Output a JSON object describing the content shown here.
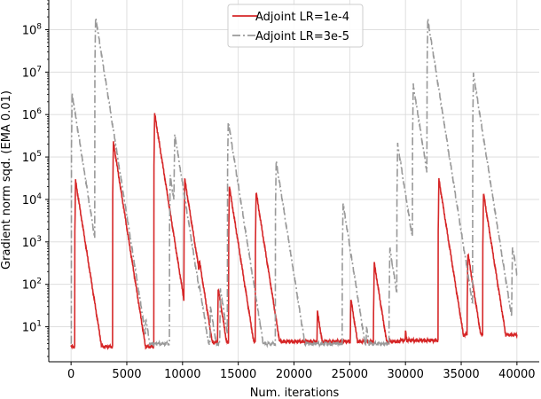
{
  "chart_data": {
    "type": "line",
    "xlabel": "Num. iterations",
    "ylabel": "Gradient norm sqd. (EMA 0.01)",
    "y_scale": "log",
    "xlim": [
      -2000,
      42000
    ],
    "ylim": [
      1.5,
      500000000
    ],
    "x_ticks": [
      0,
      5000,
      10000,
      15000,
      20000,
      25000,
      30000,
      35000,
      40000
    ],
    "x_tick_labels": [
      "0",
      "5000",
      "10000",
      "15000",
      "20000",
      "25000",
      "30000",
      "35000",
      "40000"
    ],
    "y_ticks": [
      10,
      100,
      1000,
      10000,
      100000,
      1000000,
      10000000,
      100000000
    ],
    "y_tick_labels": [
      {
        "base": "10",
        "exp": "1"
      },
      {
        "base": "10",
        "exp": "2"
      },
      {
        "base": "10",
        "exp": "3"
      },
      {
        "base": "10",
        "exp": "4"
      },
      {
        "base": "10",
        "exp": "5"
      },
      {
        "base": "10",
        "exp": "6"
      },
      {
        "base": "10",
        "exp": "7"
      },
      {
        "base": "10",
        "exp": "8"
      }
    ],
    "grid": true,
    "legend_position": "top-center",
    "series": [
      {
        "name": "Adjoint LR=1e-4",
        "color": "#d62728",
        "dash": "solid",
        "baseline_segments": [
          {
            "from": 0,
            "to": 7500,
            "value": 3.4
          },
          {
            "from": 7500,
            "to": 15000,
            "value": 4.3
          },
          {
            "from": 15000,
            "to": 29500,
            "value": 4.5
          },
          {
            "from": 29500,
            "to": 34000,
            "value": 4.8
          },
          {
            "from": 34000,
            "to": 40000,
            "value": 6.5
          }
        ],
        "spikes": [
          {
            "x": 400,
            "peak": 28000
          },
          {
            "x": 3800,
            "peak": 220000
          },
          {
            "x": 7500,
            "peak": 1050000
          },
          {
            "x": 8800,
            "peak": 170
          },
          {
            "x": 10200,
            "peak": 30000
          },
          {
            "x": 11500,
            "peak": 380
          },
          {
            "x": 13200,
            "peak": 80
          },
          {
            "x": 14200,
            "peak": 20000
          },
          {
            "x": 16600,
            "peak": 15000
          },
          {
            "x": 22100,
            "peak": 23
          },
          {
            "x": 25100,
            "peak": 45
          },
          {
            "x": 27200,
            "peak": 320
          },
          {
            "x": 30000,
            "peak": 8
          },
          {
            "x": 33000,
            "peak": 30000
          },
          {
            "x": 35600,
            "peak": 550
          },
          {
            "x": 37000,
            "peak": 14000
          }
        ]
      },
      {
        "name": "Adjoint LR=3e-5",
        "color": "#999999",
        "dash": "dashdot",
        "baseline_segments": [
          {
            "from": 0,
            "to": 40000,
            "value": 4.0
          }
        ],
        "spikes": [
          {
            "x": 100,
            "peak": 3000000
          },
          {
            "x": 2200,
            "peak": 200000000
          },
          {
            "x": 6700,
            "peak": 16
          },
          {
            "x": 8900,
            "peak": 35000
          },
          {
            "x": 9300,
            "peak": 350000
          },
          {
            "x": 10600,
            "peak": 350
          },
          {
            "x": 11500,
            "peak": 100
          },
          {
            "x": 12500,
            "peak": 30
          },
          {
            "x": 13400,
            "peak": 75
          },
          {
            "x": 14100,
            "peak": 700000
          },
          {
            "x": 15000,
            "peak": 15000
          },
          {
            "x": 18400,
            "peak": 80000
          },
          {
            "x": 19000,
            "peak": 6000
          },
          {
            "x": 24400,
            "peak": 8000
          },
          {
            "x": 26500,
            "peak": 10
          },
          {
            "x": 28600,
            "peak": 700
          },
          {
            "x": 29300,
            "peak": 200000
          },
          {
            "x": 30700,
            "peak": 5000000
          },
          {
            "x": 32000,
            "peak": 180000000
          },
          {
            "x": 36100,
            "peak": 9000000
          },
          {
            "x": 37100,
            "peak": 18
          },
          {
            "x": 39600,
            "peak": 800
          }
        ]
      }
    ]
  }
}
